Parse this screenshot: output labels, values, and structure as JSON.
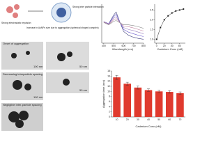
{
  "schematic": {
    "labels": [
      "Strong electrostatic repulsion",
      "Increase in AuNPs size due to aggregation (spherical shaped complex)",
      "Strong inter particle interaction"
    ]
  },
  "tem": {
    "captions": [
      "Onset of aggregation",
      "Decreasing interparticle spacing",
      "Negligible inter-particle spacing"
    ],
    "scale_bars": [
      "100 nm",
      "50 nm",
      "100 nm",
      "50 nm"
    ]
  },
  "chart_data": [
    {
      "type": "line",
      "x_label": "Wavelength (nm)",
      "x": [
        400,
        450,
        500,
        525,
        550,
        600,
        650,
        700,
        750,
        800
      ],
      "xlim": [
        380,
        800
      ],
      "xticks": [
        400,
        500,
        600,
        700,
        800
      ],
      "ylim": [
        0,
        1
      ],
      "series": [
        {
          "color": "#3a3a7a",
          "values": [
            0.55,
            0.5,
            0.72,
            0.8,
            0.62,
            0.3,
            0.2,
            0.15,
            0.12,
            0.1
          ]
        },
        {
          "color": "#6a5acd",
          "values": [
            0.55,
            0.5,
            0.68,
            0.74,
            0.6,
            0.35,
            0.28,
            0.24,
            0.2,
            0.17
          ]
        },
        {
          "color": "#9a7fc0",
          "values": [
            0.55,
            0.49,
            0.64,
            0.68,
            0.58,
            0.4,
            0.35,
            0.32,
            0.28,
            0.24
          ]
        },
        {
          "color": "#c080a0",
          "values": [
            0.54,
            0.48,
            0.6,
            0.63,
            0.56,
            0.44,
            0.42,
            0.39,
            0.35,
            0.31
          ]
        },
        {
          "color": "#888888",
          "values": [
            0.53,
            0.47,
            0.56,
            0.58,
            0.54,
            0.47,
            0.47,
            0.45,
            0.42,
            0.38
          ]
        }
      ]
    },
    {
      "type": "scatter",
      "x_label": "Cadmium Conc (nM)",
      "x": [
        0,
        10,
        20,
        30,
        40,
        50,
        60,
        70
      ],
      "values": [
        1.0,
        1.6,
        2.0,
        2.2,
        2.35,
        2.45,
        2.5,
        2.55
      ],
      "color": "#222222",
      "xlim": [
        -5,
        75
      ],
      "xticks": [
        0,
        20,
        40,
        60
      ],
      "ylim": [
        0.8,
        2.8
      ],
      "yticks": [
        {
          "value": 1,
          "label": "1.0"
        },
        1.5,
        {
          "value": 2,
          "label": "2.0"
        },
        2.5
      ]
    },
    {
      "type": "bar",
      "x_label": "Cadmium Conc (nM)",
      "y_label": "Aggregation time (sec)",
      "categories": [
        "10",
        "20",
        "30",
        "40",
        "50",
        "60",
        "70"
      ],
      "values": [
        15.5,
        13,
        11.5,
        10.5,
        10,
        9.8,
        9.3
      ],
      "errors": [
        0.8,
        0.6,
        0.6,
        0.5,
        0.5,
        0.5,
        0.5
      ],
      "color": "#e03a2e",
      "ylim": [
        0,
        18
      ],
      "yticks": [
        0,
        2,
        4,
        6,
        8,
        10,
        12,
        14,
        16,
        18
      ]
    }
  ]
}
